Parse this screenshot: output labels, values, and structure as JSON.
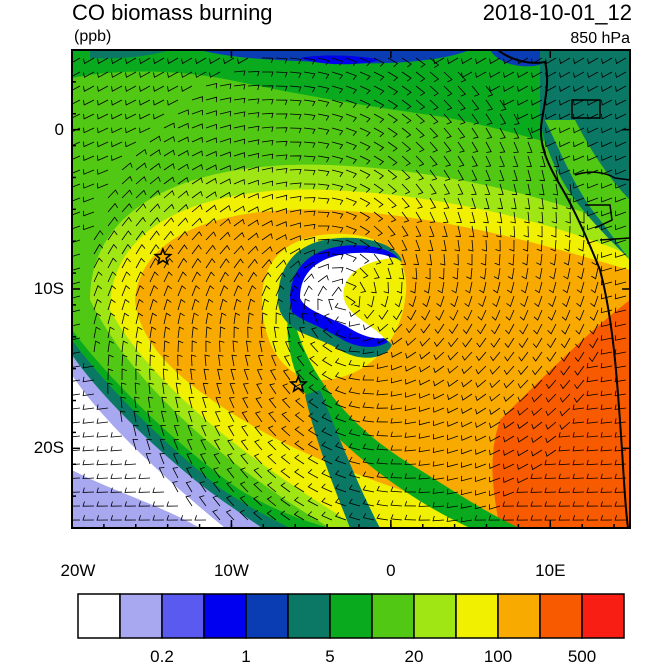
{
  "header": {
    "title": "CO biomass burning",
    "datetime": "2018-10-01_12",
    "units": "(ppb)",
    "level": "850 hPa"
  },
  "axes": {
    "x_ticks": [
      {
        "label": "20W",
        "lon": -20
      },
      {
        "label": "10W",
        "lon": -10
      },
      {
        "label": "0",
        "lon": 0
      },
      {
        "label": "10E",
        "lon": 10
      }
    ],
    "y_ticks": [
      {
        "label": "0",
        "lat": 0
      },
      {
        "label": "10S",
        "lat": -10
      },
      {
        "label": "20S",
        "lat": -20
      }
    ],
    "lon_range": [
      -20,
      15
    ],
    "lat_range": [
      -25,
      5
    ]
  },
  "colorbar": {
    "colors": [
      "#ffffff",
      "#a8a8f0",
      "#5a5af0",
      "#0000f0",
      "#0a3cb4",
      "#0a7864",
      "#0aaa1e",
      "#50c814",
      "#a0e614",
      "#f0f000",
      "#f8aa00",
      "#f85a00",
      "#f81e14"
    ],
    "labels": [
      {
        "text": "0.2",
        "boundary": 2
      },
      {
        "text": "1",
        "boundary": 4
      },
      {
        "text": "5",
        "boundary": 6
      },
      {
        "text": "20",
        "boundary": 8
      },
      {
        "text": "100",
        "boundary": 10
      },
      {
        "text": "500",
        "boundary": 12
      }
    ]
  },
  "markers": [
    {
      "name": "star",
      "lon": -14.3,
      "lat": -8.0
    },
    {
      "name": "star",
      "lon": -5.8,
      "lat": -16.0
    }
  ]
}
